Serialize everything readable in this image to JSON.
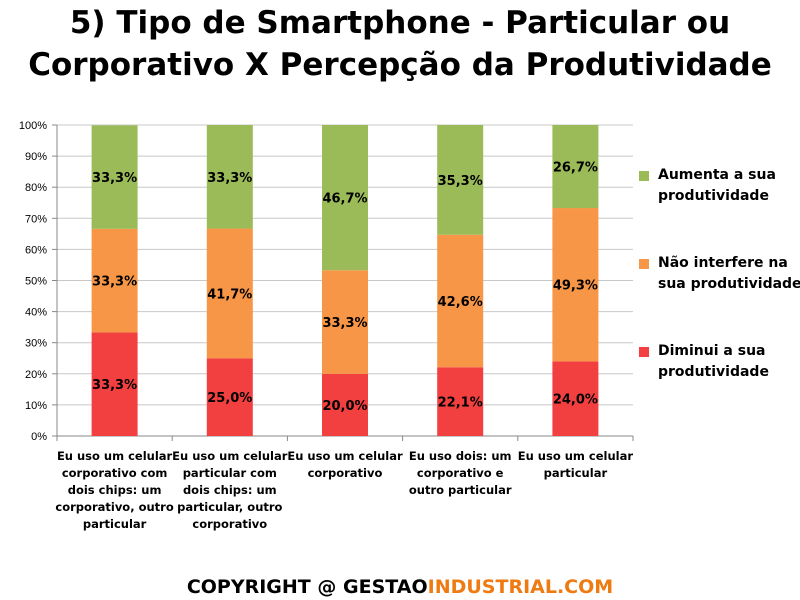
{
  "title_lines": [
    "5) Tipo de Smartphone - Particular ou",
    "Corporativo X Percepção da Produtividade"
  ],
  "colors": {
    "aumenta": "#9bbb59",
    "nao_interfere": "#f79646",
    "diminui": "#f24040"
  },
  "chart_data": {
    "type": "bar",
    "stacked": true,
    "title": "5) Tipo de Smartphone - Particular ou Corporativo X Percepção da Produtividade",
    "categories": [
      [
        "Eu uso um celular",
        "corporativo com",
        "dois chips: um",
        "corporativo, outro",
        "particular"
      ],
      [
        "Eu uso um celular",
        "particular com",
        "dois chips: um",
        "particular, outro",
        "corporativo"
      ],
      [
        "Eu uso um celular",
        "corporativo"
      ],
      [
        "Eu uso dois: um",
        "corporativo e",
        "outro particular"
      ],
      [
        "Eu uso um celular",
        "particular"
      ]
    ],
    "series": [
      {
        "name": "Diminui a sua produtividade",
        "legend_lines": [
          "Diminui a sua",
          "produtividade"
        ],
        "color": "#f24040",
        "values": [
          33.3,
          25.0,
          20.0,
          22.1,
          24.0
        ],
        "labels": [
          "33,3%",
          "25,0%",
          "20,0%",
          "22,1%",
          "24,0%"
        ]
      },
      {
        "name": "Não interfere na sua produtividade",
        "legend_lines": [
          "Não interfere na",
          "sua produtividade"
        ],
        "color": "#f79646",
        "values": [
          33.3,
          41.7,
          33.3,
          42.6,
          49.3
        ],
        "labels": [
          "33,3%",
          "41,7%",
          "33,3%",
          "42,6%",
          "49,3%"
        ]
      },
      {
        "name": "Aumenta a sua produtividade",
        "legend_lines": [
          "Aumenta a sua",
          "produtividade"
        ],
        "color": "#9bbb59",
        "values": [
          33.3,
          33.3,
          46.7,
          35.3,
          26.7
        ],
        "labels": [
          "33,3%",
          "33,3%",
          "46,7%",
          "35,3%",
          "26,7%"
        ]
      }
    ],
    "yticks": [
      "0%",
      "10%",
      "20%",
      "30%",
      "40%",
      "50%",
      "60%",
      "70%",
      "80%",
      "90%",
      "100%"
    ],
    "ylim": [
      0,
      100
    ],
    "grid": true,
    "legend_position": "right"
  },
  "footer": {
    "copyright": "COPYRIGHT @",
    "brand_1": "GESTAO",
    "brand_2": "INDUSTRIAL.COM"
  }
}
